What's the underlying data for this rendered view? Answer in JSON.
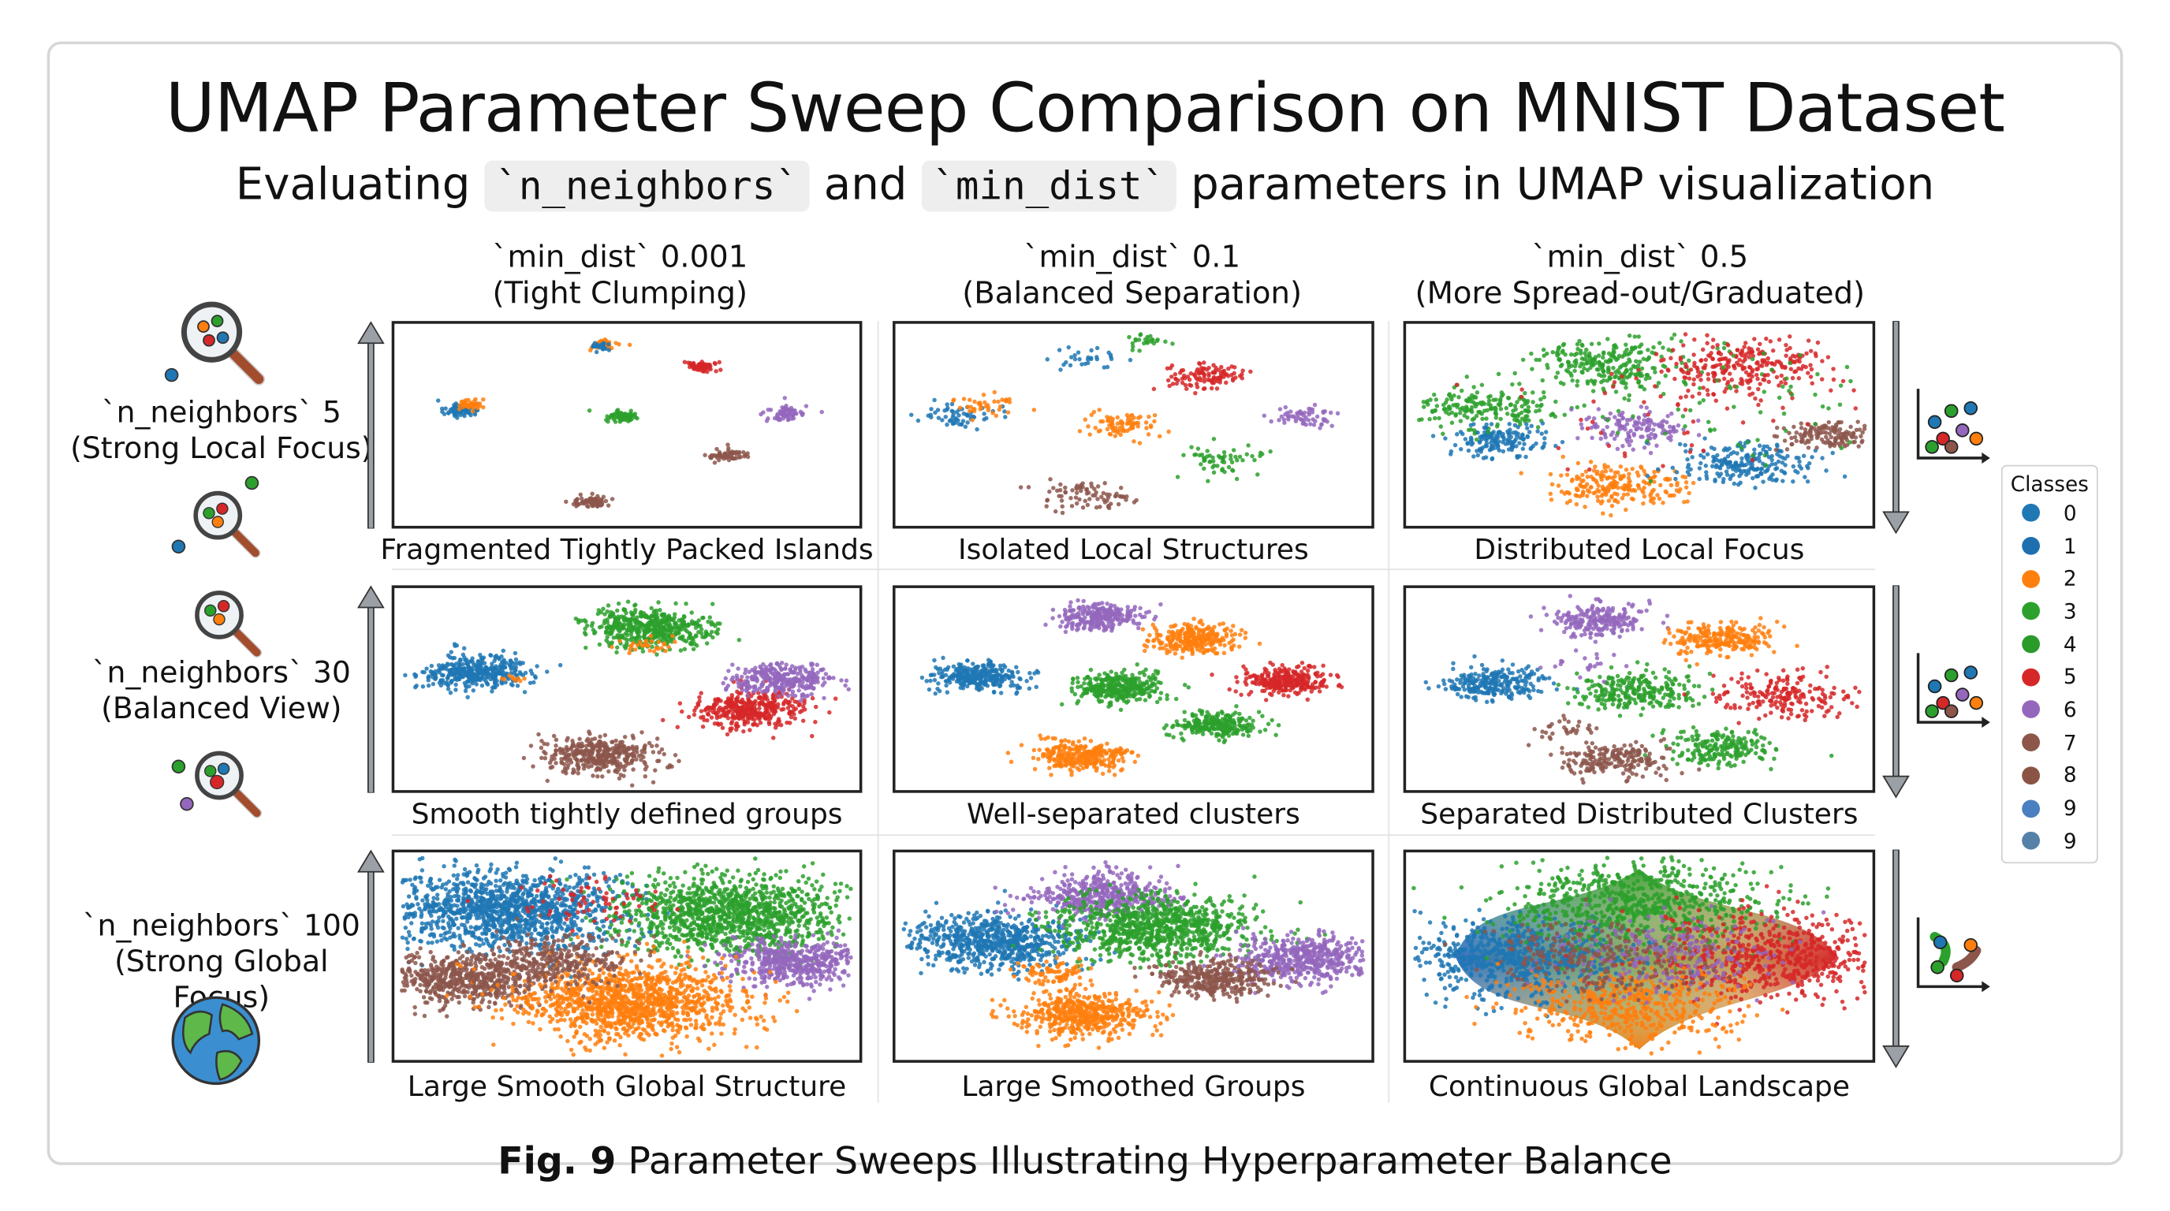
{
  "title": "UMAP Parameter Sweep Comparison on MNIST Dataset",
  "subtitle": {
    "prefix": "Evaluating",
    "code1": "`n_neighbors`",
    "middle": "and",
    "code2": "`min_dist`",
    "suffix": "parameters in UMAP visualization"
  },
  "columns": [
    {
      "line1": "`min_dist` 0.001",
      "line2": "(Tight Clumping)"
    },
    {
      "line1": "`min_dist` 0.1",
      "line2": "(Balanced Separation)"
    },
    {
      "line1": "`min_dist` 0.5",
      "line2": "(More Spread-out/Graduated)"
    }
  ],
  "rows": [
    {
      "line1": "`n_neighbors` 5",
      "line2": "(Strong Local Focus)",
      "icon": "magnifier-clusters-icon"
    },
    {
      "line1": "`n_neighbors` 30",
      "line2": "(Balanced View)",
      "icon": "magnifier-clusters-icon"
    },
    {
      "line1": "`n_neighbors` 100",
      "line2": "(Strong Global Focus)",
      "icon": "globe-icon"
    }
  ],
  "captions": [
    "Fragmented Tightly Packed Islands",
    "Isolated Local Structures",
    "Distributed Local Focus",
    "Smooth tightly defined groups",
    "Well-separated clusters",
    "Separated Distributed Clusters",
    "Large Smooth Global Structure",
    "Large Smoothed Groups",
    "Continuous Global Landscape"
  ],
  "legend": {
    "title": "Classes",
    "items": [
      {
        "label": "0",
        "color": "#1f77b4"
      },
      {
        "label": "1",
        "color": "#1f6fb0"
      },
      {
        "label": "2",
        "color": "#ff7f0e"
      },
      {
        "label": "3",
        "color": "#2ca02c"
      },
      {
        "label": "4",
        "color": "#2a9a2a"
      },
      {
        "label": "5",
        "color": "#d62728"
      },
      {
        "label": "6",
        "color": "#9467bd"
      },
      {
        "label": "7",
        "color": "#8c564b"
      },
      {
        "label": "8",
        "color": "#8a5444"
      },
      {
        "label": "9",
        "color": "#4a7fc1"
      },
      {
        "label": "9",
        "color": "#5580a8"
      }
    ]
  },
  "figure_caption": {
    "label": "Fig. 9",
    "text": "Parameter Sweeps Illustrating Hyperparameter Balance"
  },
  "chart_data": {
    "type": "scatter",
    "axes": "unlabeled 2D UMAP embedding, no ticks",
    "grid": false,
    "legend_placement": "right",
    "panels": [
      {
        "n_neighbors": 5,
        "min_dist": 0.001,
        "clusters": [
          [
            "orange",
            4.5,
            1.0,
            0.12,
            40
          ],
          [
            "blue",
            4.4,
            1.1,
            0.1,
            25
          ],
          [
            "red",
            6.6,
            2.1,
            0.15,
            70
          ],
          [
            "blue",
            1.4,
            4.3,
            0.16,
            80
          ],
          [
            "orange",
            1.6,
            4.0,
            0.12,
            40
          ],
          [
            "green",
            4.9,
            4.6,
            0.14,
            70
          ],
          [
            "purple",
            8.5,
            4.4,
            0.2,
            70
          ],
          [
            "brown",
            7.2,
            6.5,
            0.18,
            60
          ],
          [
            "brown",
            4.2,
            8.8,
            0.18,
            70
          ]
        ]
      },
      {
        "n_neighbors": 5,
        "min_dist": 0.1,
        "clusters": [
          [
            "blue",
            1.3,
            4.6,
            0.35,
            60
          ],
          [
            "orange",
            1.9,
            4.0,
            0.3,
            40
          ],
          [
            "blue",
            4.0,
            1.8,
            0.3,
            30
          ],
          [
            "green",
            5.2,
            0.9,
            0.2,
            25
          ],
          [
            "red",
            6.6,
            2.5,
            0.3,
            80
          ],
          [
            "red",
            6.2,
            2.9,
            0.3,
            30
          ],
          [
            "orange",
            4.8,
            5.0,
            0.35,
            80
          ],
          [
            "purple",
            8.6,
            4.6,
            0.3,
            60
          ],
          [
            "green",
            6.9,
            6.7,
            0.4,
            60
          ],
          [
            "brown",
            4.0,
            8.5,
            0.4,
            80
          ]
        ]
      },
      {
        "n_neighbors": 5,
        "min_dist": 0.5,
        "clusters": [
          [
            "green",
            1.7,
            4.2,
            0.6,
            200
          ],
          [
            "blue",
            1.9,
            5.8,
            0.45,
            160
          ],
          [
            "green",
            4.5,
            2.0,
            0.7,
            250
          ],
          [
            "red",
            7.3,
            2.1,
            0.7,
            250
          ],
          [
            "purple",
            4.9,
            5.1,
            0.5,
            140
          ],
          [
            "orange",
            4.4,
            8.0,
            0.6,
            220
          ],
          [
            "blue",
            7.3,
            6.9,
            0.6,
            220
          ],
          [
            "brown",
            9.0,
            5.5,
            0.4,
            140
          ],
          [
            "green",
            6.5,
            3.2,
            1.8,
            90
          ],
          [
            "red",
            6.0,
            3.8,
            1.6,
            60
          ]
        ]
      },
      {
        "n_neighbors": 30,
        "min_dist": 0.001,
        "clusters": [
          [
            "blue",
            1.7,
            4.2,
            0.45,
            400
          ],
          [
            "green",
            5.5,
            2.0,
            0.55,
            500
          ],
          [
            "red",
            7.7,
            6.0,
            0.5,
            380
          ],
          [
            "purple",
            8.4,
            4.5,
            0.45,
            300
          ],
          [
            "brown",
            4.4,
            8.3,
            0.5,
            380
          ],
          [
            "orange",
            5.4,
            2.8,
            0.3,
            30
          ],
          [
            "orange",
            2.5,
            4.5,
            0.1,
            10
          ]
        ]
      },
      {
        "n_neighbors": 30,
        "min_dist": 0.1,
        "clusters": [
          [
            "purple",
            4.3,
            1.4,
            0.35,
            250
          ],
          [
            "orange",
            6.3,
            2.5,
            0.38,
            280
          ],
          [
            "blue",
            1.7,
            4.4,
            0.38,
            300
          ],
          [
            "green",
            4.7,
            4.9,
            0.4,
            320
          ],
          [
            "red",
            8.2,
            4.6,
            0.38,
            280
          ],
          [
            "green",
            6.7,
            6.8,
            0.35,
            250
          ],
          [
            "orange",
            3.9,
            8.3,
            0.4,
            300
          ]
        ]
      },
      {
        "n_neighbors": 30,
        "min_dist": 0.5,
        "clusters": [
          [
            "purple",
            4.1,
            1.6,
            0.45,
            220
          ],
          [
            "orange",
            6.8,
            2.5,
            0.45,
            230
          ],
          [
            "blue",
            1.8,
            4.7,
            0.45,
            260
          ],
          [
            "green",
            4.9,
            5.0,
            0.55,
            260
          ],
          [
            "red",
            8.2,
            5.3,
            0.6,
            200
          ],
          [
            "green",
            6.8,
            7.9,
            0.5,
            200
          ],
          [
            "brown",
            4.4,
            8.5,
            0.5,
            200
          ],
          [
            "brown",
            3.5,
            7.0,
            0.3,
            30
          ],
          [
            "purple",
            3.7,
            3.8,
            0.4,
            20
          ]
        ]
      },
      {
        "n_neighbors": 100,
        "min_dist": 0.001,
        "clusters": [
          [
            "blue",
            2.3,
            2.8,
            1.1,
            1300
          ],
          [
            "green",
            7.3,
            3.0,
            1.0,
            1200
          ],
          [
            "purple",
            8.6,
            5.3,
            0.6,
            500
          ],
          [
            "brown",
            1.5,
            6.1,
            0.7,
            600
          ],
          [
            "orange",
            5.0,
            7.2,
            1.0,
            1200
          ],
          [
            "red",
            4.3,
            2.3,
            0.6,
            70
          ],
          [
            "brown",
            3.5,
            5.2,
            0.7,
            300
          ]
        ]
      },
      {
        "n_neighbors": 100,
        "min_dist": 0.1,
        "clusters": [
          [
            "blue",
            2.0,
            4.3,
            0.7,
            700
          ],
          [
            "purple",
            4.3,
            2.1,
            0.6,
            450
          ],
          [
            "green",
            5.5,
            3.6,
            0.85,
            900
          ],
          [
            "purple",
            8.6,
            5.1,
            0.6,
            500
          ],
          [
            "brown",
            6.7,
            6.1,
            0.5,
            350
          ],
          [
            "orange",
            3.9,
            7.8,
            0.6,
            500
          ],
          [
            "orange",
            3.3,
            5.8,
            0.35,
            80
          ]
        ]
      },
      {
        "n_neighbors": 100,
        "min_dist": 0.5,
        "landscape": true,
        "clusters": [
          [
            "blue",
            2.3,
            5.0,
            1.1,
            700
          ],
          [
            "green",
            5.0,
            2.4,
            1.2,
            700
          ],
          [
            "red",
            7.8,
            5.0,
            1.1,
            600
          ],
          [
            "orange",
            4.8,
            7.3,
            1.0,
            500
          ],
          [
            "purple",
            5.6,
            5.0,
            1.0,
            250
          ],
          [
            "brown",
            4.2,
            5.0,
            1.0,
            250
          ]
        ]
      }
    ]
  }
}
